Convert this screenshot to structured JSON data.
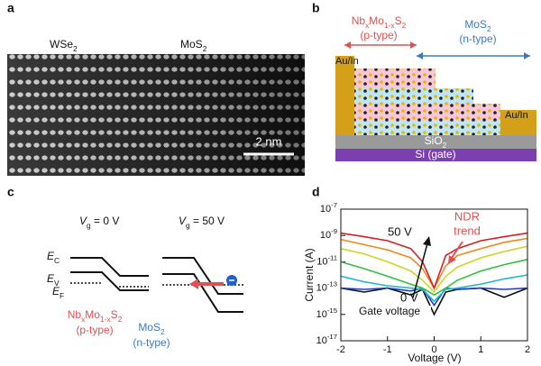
{
  "panels": {
    "a": {
      "label": "a",
      "left_material": [
        "WSe",
        {
          "sub": "2"
        }
      ],
      "right_material": [
        "MoS",
        {
          "sub": "2"
        }
      ],
      "scale_bar": "2 nm"
    },
    "b": {
      "label": "b",
      "p_material": [
        "Nb",
        {
          "sub": "x"
        },
        "Mo",
        {
          "sub": "1-x"
        },
        "S",
        {
          "sub": "2"
        }
      ],
      "p_type": "(p-type)",
      "n_material": [
        "MoS",
        {
          "sub": "2"
        }
      ],
      "n_type": "(n-type)",
      "left_contact": "Au/In",
      "right_contact": "Au/In",
      "oxide": [
        "SiO",
        {
          "sub": "2"
        }
      ],
      "substrate": "Si (gate)"
    },
    "c": {
      "label": "c",
      "left_condition": [
        {
          "it": "V"
        },
        {
          "sub": "g"
        },
        " = 0 V"
      ],
      "right_condition": [
        {
          "it": "V"
        },
        {
          "sub": "g"
        },
        " = 50 V"
      ],
      "conduction_band": [
        {
          "it": "E"
        },
        {
          "sub": "C"
        }
      ],
      "valence_band": [
        {
          "it": "E"
        },
        {
          "sub": "V"
        }
      ],
      "fermi_level": [
        {
          "it": "E"
        },
        {
          "sub": "F"
        }
      ],
      "p_material": [
        "Nb",
        {
          "sub": "x"
        },
        "Mo",
        {
          "sub": "1-x"
        },
        "S",
        {
          "sub": "2"
        }
      ],
      "p_type": "(p-type)",
      "n_material": [
        "MoS",
        {
          "sub": "2"
        }
      ],
      "n_type": "(n-type)"
    }
  },
  "chart_data": {
    "type": "line",
    "panel_label": "d",
    "x_label": "Voltage (V)",
    "y_label": "Current (A)",
    "y_scale": "log",
    "x": [
      -2,
      -1.5,
      -1,
      -0.5,
      -0.25,
      0,
      0.25,
      0.5,
      1,
      1.5,
      2
    ],
    "series": [
      {
        "color": "#111111",
        "values": [
          1e-13,
          5e-14,
          1e-13,
          3e-14,
          8e-14,
          1e-15,
          5e-14,
          8e-14,
          1e-13,
          2e-14,
          1e-13
        ]
      },
      {
        "color": "#1f3fbf",
        "values": [
          1e-13,
          8e-14,
          1e-13,
          6e-14,
          1e-13,
          5e-15,
          1e-13,
          8e-14,
          1e-13,
          8e-14,
          1e-13
        ]
      },
      {
        "color": "#20b8d0",
        "values": [
          8e-13,
          3e-13,
          1.5e-13,
          1e-13,
          8e-14,
          1e-14,
          8e-14,
          1e-13,
          2e-13,
          5e-13,
          1e-12
        ]
      },
      {
        "color": "#30c040",
        "values": [
          1e-11,
          3e-12,
          8e-13,
          2e-13,
          1e-13,
          3e-14,
          1e-13,
          4e-13,
          2e-12,
          6e-12,
          1.5e-11
        ]
      },
      {
        "color": "#c8d820",
        "values": [
          1e-10,
          4e-11,
          1e-11,
          2e-12,
          4e-13,
          5e-14,
          8e-13,
          4e-12,
          2e-11,
          6e-11,
          1.5e-10
        ]
      },
      {
        "color": "#f08a20",
        "values": [
          5e-10,
          2e-10,
          8e-11,
          2e-11,
          3e-12,
          1e-13,
          5e-12,
          3e-11,
          1e-10,
          3e-10,
          6e-10
        ]
      },
      {
        "color": "#d42020",
        "values": [
          1.5e-09,
          8e-10,
          4e-10,
          1e-10,
          1e-11,
          1e-13,
          3e-11,
          1e-10,
          4e-10,
          8e-10,
          1.5e-09
        ]
      }
    ],
    "xlim": [
      -2,
      2
    ],
    "ylim": [
      1e-17,
      1e-07
    ],
    "xticks": [
      -2,
      -1,
      0,
      1,
      2
    ],
    "yticks": [
      {
        "value": 1e-07,
        "label": [
          "10",
          {
            "sup": "-7"
          }
        ]
      },
      {
        "value": 1e-09,
        "label": [
          "10",
          {
            "sup": "-9"
          }
        ]
      },
      {
        "value": 1e-11,
        "label": [
          "10",
          {
            "sup": "-11"
          }
        ]
      },
      {
        "value": 1e-13,
        "label": [
          "10",
          {
            "sup": "-13"
          }
        ]
      },
      {
        "value": 1e-15,
        "label": [
          "10",
          {
            "sup": "-15"
          }
        ]
      },
      {
        "value": 1e-17,
        "label": [
          "10",
          {
            "sup": "-17"
          }
        ]
      }
    ],
    "annotations": {
      "high": "50 V",
      "low": "0 V",
      "arrow_label": "Gate voltage",
      "ndr": [
        "NDR",
        "trend"
      ]
    }
  }
}
